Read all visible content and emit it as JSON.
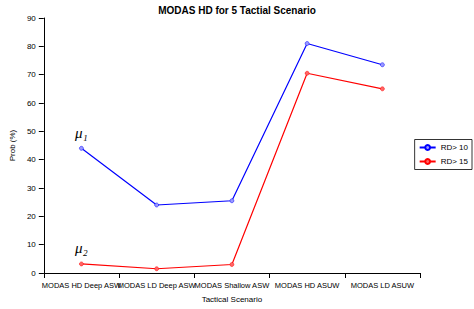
{
  "chart_data": {
    "type": "line",
    "title": "MODAS HD for 5 Tactial Scenario",
    "x_label": "Tactical Scenario",
    "y_label": "Prob (%)",
    "categories": [
      "MODAS HD Deep ASW",
      "MODAS LD Deep ASW",
      "MODAS Shallow ASW",
      "MODAS HD ASUW",
      "MODAS LD ASUW"
    ],
    "series": [
      {
        "name": "RD> 10",
        "color": "#0000ff",
        "marker": "circle",
        "values": [
          44,
          24,
          25.5,
          81,
          73.5
        ]
      },
      {
        "name": "RD> 15",
        "color": "#ff0000",
        "marker": "circle",
        "values": [
          3.2,
          1.5,
          3,
          70.5,
          65
        ]
      }
    ],
    "annotations": [
      {
        "text": "μ₁",
        "series": "RD> 10",
        "category": "MODAS HD Deep ASW"
      },
      {
        "text": "μ₂",
        "series": "RD> 15",
        "category": "MODAS HD Deep ASW"
      }
    ],
    "ylim": [
      0,
      90
    ],
    "yticks": [
      0,
      10,
      20,
      30,
      40,
      50,
      60,
      70,
      80,
      90
    ],
    "grid": false,
    "legend": "right"
  }
}
